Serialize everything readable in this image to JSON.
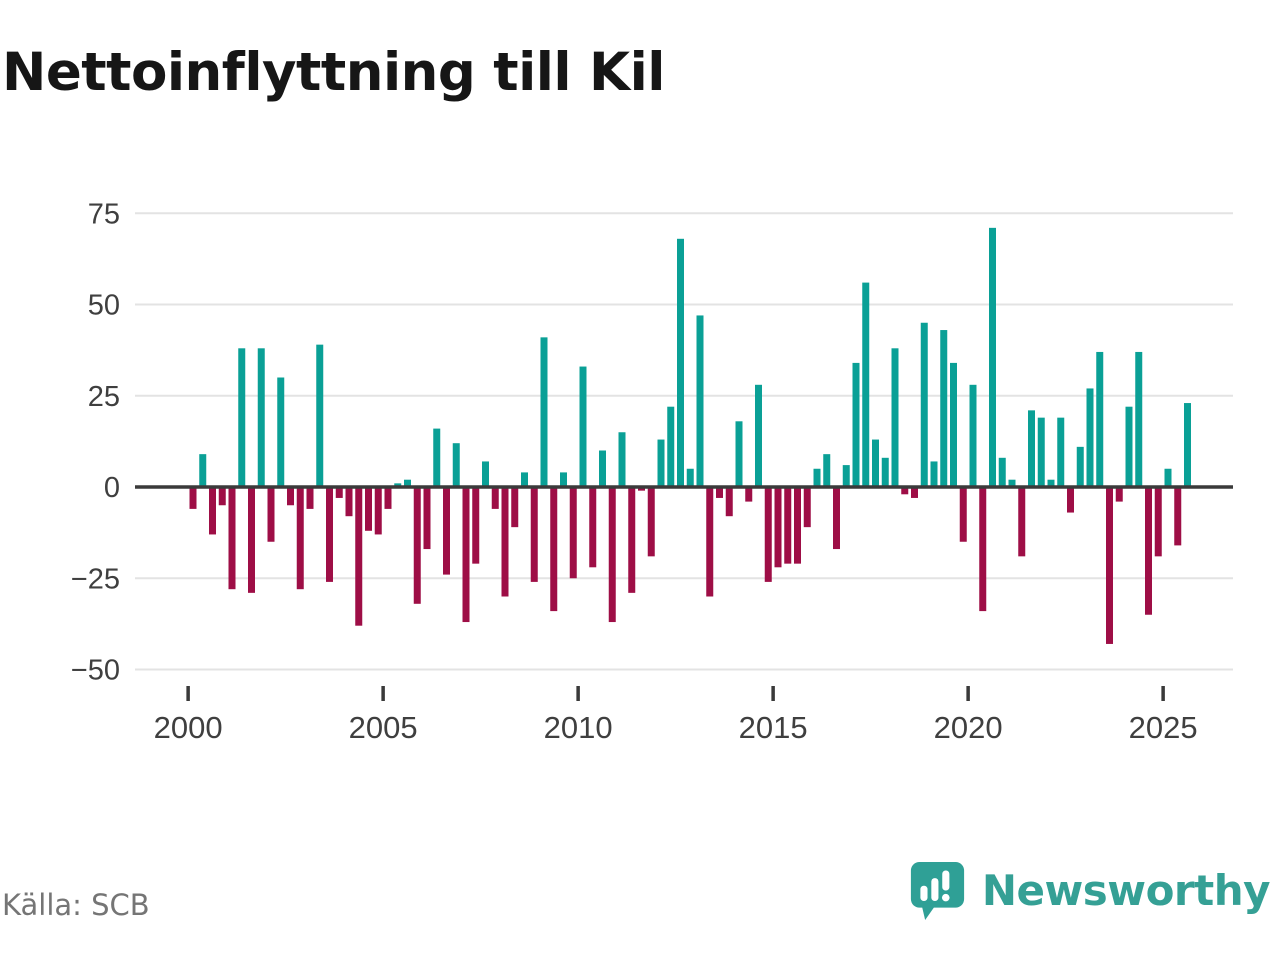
{
  "header": {
    "title": "Nettoinflyttning till Kil"
  },
  "chart_data": {
    "type": "bar",
    "title": "Nettoinflyttning till Kil",
    "frequency": "quarterly",
    "start_year": 2000,
    "start_quarter": 1,
    "ylim": [
      -50,
      75
    ],
    "grid": "horizontal",
    "legend_position": "none",
    "y_ticks": [
      75,
      50,
      25,
      0,
      -25,
      -50
    ],
    "y_tick_labels": [
      "75",
      "50",
      "25",
      "0",
      "−25",
      "−50"
    ],
    "x_tick_years": [
      2000,
      2005,
      2010,
      2015,
      2020,
      2025
    ],
    "x_tick_labels": [
      "2000",
      "2005",
      "2010",
      "2015",
      "2020",
      "2025"
    ],
    "series": [
      {
        "name": "Nettoinflyttning",
        "values": [
          -6,
          9,
          -13,
          -5,
          -28,
          38,
          -29,
          38,
          -15,
          30,
          -5,
          -28,
          -6,
          39,
          -26,
          -3,
          -8,
          -38,
          -12,
          -13,
          -6,
          1,
          2,
          -32,
          -17,
          16,
          -24,
          12,
          -37,
          -21,
          7,
          -6,
          -30,
          -11,
          4,
          -26,
          41,
          -34,
          4,
          -25,
          33,
          -22,
          10,
          -37,
          15,
          -29,
          -1,
          -19,
          13,
          22,
          68,
          5,
          47,
          -30,
          -3,
          -8,
          18,
          -4,
          28,
          -26,
          -22,
          -21,
          -21,
          -11,
          5,
          9,
          -17,
          6,
          34,
          56,
          13,
          8,
          38,
          -2,
          -3,
          45,
          7,
          43,
          34,
          -15,
          28,
          -34,
          71,
          8,
          2,
          -19,
          21,
          19,
          2,
          19,
          -7,
          11,
          27,
          37,
          -43,
          -4,
          22,
          37,
          -35,
          -19,
          5,
          -16,
          23
        ]
      }
    ],
    "colors": {
      "positive": "#0aa096",
      "negative": "#9e0e46"
    }
  },
  "style_colors": {
    "gridline": "#e3e3e3",
    "zero_line": "#3a3a3a",
    "tick_mark": "#3a3a3a",
    "axis_label": "#3f3f3f",
    "title_text": "#161616",
    "source_text": "#757575",
    "brand_teal": "#35a095"
  },
  "footer": {
    "source": "Källa: SCB",
    "brand": "Newsworthy"
  },
  "icons": {
    "logo": "newsworthy-speech-bubble-barchart-icon"
  }
}
